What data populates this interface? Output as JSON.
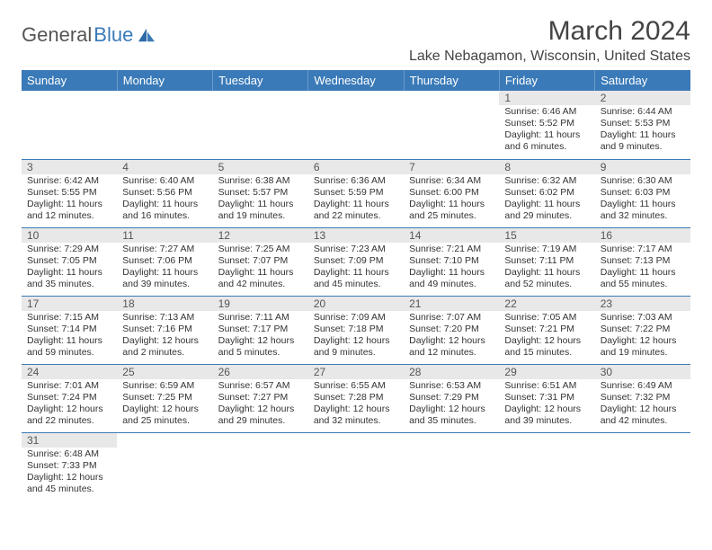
{
  "brand": {
    "part1": "General",
    "part2": "Blue"
  },
  "title": "March 2024",
  "location": "Lake Nebagamon, Wisconsin, United States",
  "colors": {
    "header_bg": "#3a7ab8",
    "header_text": "#ffffff",
    "daynum_bg": "#e8e8e8",
    "row_border": "#3a7ab8",
    "body_text": "#333333"
  },
  "day_headers": [
    "Sunday",
    "Monday",
    "Tuesday",
    "Wednesday",
    "Thursday",
    "Friday",
    "Saturday"
  ],
  "weeks": [
    [
      null,
      null,
      null,
      null,
      null,
      {
        "n": "1",
        "sr": "Sunrise: 6:46 AM",
        "ss": "Sunset: 5:52 PM",
        "d1": "Daylight: 11 hours",
        "d2": "and 6 minutes."
      },
      {
        "n": "2",
        "sr": "Sunrise: 6:44 AM",
        "ss": "Sunset: 5:53 PM",
        "d1": "Daylight: 11 hours",
        "d2": "and 9 minutes."
      }
    ],
    [
      {
        "n": "3",
        "sr": "Sunrise: 6:42 AM",
        "ss": "Sunset: 5:55 PM",
        "d1": "Daylight: 11 hours",
        "d2": "and 12 minutes."
      },
      {
        "n": "4",
        "sr": "Sunrise: 6:40 AM",
        "ss": "Sunset: 5:56 PM",
        "d1": "Daylight: 11 hours",
        "d2": "and 16 minutes."
      },
      {
        "n": "5",
        "sr": "Sunrise: 6:38 AM",
        "ss": "Sunset: 5:57 PM",
        "d1": "Daylight: 11 hours",
        "d2": "and 19 minutes."
      },
      {
        "n": "6",
        "sr": "Sunrise: 6:36 AM",
        "ss": "Sunset: 5:59 PM",
        "d1": "Daylight: 11 hours",
        "d2": "and 22 minutes."
      },
      {
        "n": "7",
        "sr": "Sunrise: 6:34 AM",
        "ss": "Sunset: 6:00 PM",
        "d1": "Daylight: 11 hours",
        "d2": "and 25 minutes."
      },
      {
        "n": "8",
        "sr": "Sunrise: 6:32 AM",
        "ss": "Sunset: 6:02 PM",
        "d1": "Daylight: 11 hours",
        "d2": "and 29 minutes."
      },
      {
        "n": "9",
        "sr": "Sunrise: 6:30 AM",
        "ss": "Sunset: 6:03 PM",
        "d1": "Daylight: 11 hours",
        "d2": "and 32 minutes."
      }
    ],
    [
      {
        "n": "10",
        "sr": "Sunrise: 7:29 AM",
        "ss": "Sunset: 7:05 PM",
        "d1": "Daylight: 11 hours",
        "d2": "and 35 minutes."
      },
      {
        "n": "11",
        "sr": "Sunrise: 7:27 AM",
        "ss": "Sunset: 7:06 PM",
        "d1": "Daylight: 11 hours",
        "d2": "and 39 minutes."
      },
      {
        "n": "12",
        "sr": "Sunrise: 7:25 AM",
        "ss": "Sunset: 7:07 PM",
        "d1": "Daylight: 11 hours",
        "d2": "and 42 minutes."
      },
      {
        "n": "13",
        "sr": "Sunrise: 7:23 AM",
        "ss": "Sunset: 7:09 PM",
        "d1": "Daylight: 11 hours",
        "d2": "and 45 minutes."
      },
      {
        "n": "14",
        "sr": "Sunrise: 7:21 AM",
        "ss": "Sunset: 7:10 PM",
        "d1": "Daylight: 11 hours",
        "d2": "and 49 minutes."
      },
      {
        "n": "15",
        "sr": "Sunrise: 7:19 AM",
        "ss": "Sunset: 7:11 PM",
        "d1": "Daylight: 11 hours",
        "d2": "and 52 minutes."
      },
      {
        "n": "16",
        "sr": "Sunrise: 7:17 AM",
        "ss": "Sunset: 7:13 PM",
        "d1": "Daylight: 11 hours",
        "d2": "and 55 minutes."
      }
    ],
    [
      {
        "n": "17",
        "sr": "Sunrise: 7:15 AM",
        "ss": "Sunset: 7:14 PM",
        "d1": "Daylight: 11 hours",
        "d2": "and 59 minutes."
      },
      {
        "n": "18",
        "sr": "Sunrise: 7:13 AM",
        "ss": "Sunset: 7:16 PM",
        "d1": "Daylight: 12 hours",
        "d2": "and 2 minutes."
      },
      {
        "n": "19",
        "sr": "Sunrise: 7:11 AM",
        "ss": "Sunset: 7:17 PM",
        "d1": "Daylight: 12 hours",
        "d2": "and 5 minutes."
      },
      {
        "n": "20",
        "sr": "Sunrise: 7:09 AM",
        "ss": "Sunset: 7:18 PM",
        "d1": "Daylight: 12 hours",
        "d2": "and 9 minutes."
      },
      {
        "n": "21",
        "sr": "Sunrise: 7:07 AM",
        "ss": "Sunset: 7:20 PM",
        "d1": "Daylight: 12 hours",
        "d2": "and 12 minutes."
      },
      {
        "n": "22",
        "sr": "Sunrise: 7:05 AM",
        "ss": "Sunset: 7:21 PM",
        "d1": "Daylight: 12 hours",
        "d2": "and 15 minutes."
      },
      {
        "n": "23",
        "sr": "Sunrise: 7:03 AM",
        "ss": "Sunset: 7:22 PM",
        "d1": "Daylight: 12 hours",
        "d2": "and 19 minutes."
      }
    ],
    [
      {
        "n": "24",
        "sr": "Sunrise: 7:01 AM",
        "ss": "Sunset: 7:24 PM",
        "d1": "Daylight: 12 hours",
        "d2": "and 22 minutes."
      },
      {
        "n": "25",
        "sr": "Sunrise: 6:59 AM",
        "ss": "Sunset: 7:25 PM",
        "d1": "Daylight: 12 hours",
        "d2": "and 25 minutes."
      },
      {
        "n": "26",
        "sr": "Sunrise: 6:57 AM",
        "ss": "Sunset: 7:27 PM",
        "d1": "Daylight: 12 hours",
        "d2": "and 29 minutes."
      },
      {
        "n": "27",
        "sr": "Sunrise: 6:55 AM",
        "ss": "Sunset: 7:28 PM",
        "d1": "Daylight: 12 hours",
        "d2": "and 32 minutes."
      },
      {
        "n": "28",
        "sr": "Sunrise: 6:53 AM",
        "ss": "Sunset: 7:29 PM",
        "d1": "Daylight: 12 hours",
        "d2": "and 35 minutes."
      },
      {
        "n": "29",
        "sr": "Sunrise: 6:51 AM",
        "ss": "Sunset: 7:31 PM",
        "d1": "Daylight: 12 hours",
        "d2": "and 39 minutes."
      },
      {
        "n": "30",
        "sr": "Sunrise: 6:49 AM",
        "ss": "Sunset: 7:32 PM",
        "d1": "Daylight: 12 hours",
        "d2": "and 42 minutes."
      }
    ],
    [
      {
        "n": "31",
        "sr": "Sunrise: 6:48 AM",
        "ss": "Sunset: 7:33 PM",
        "d1": "Daylight: 12 hours",
        "d2": "and 45 minutes."
      },
      null,
      null,
      null,
      null,
      null,
      null
    ]
  ]
}
